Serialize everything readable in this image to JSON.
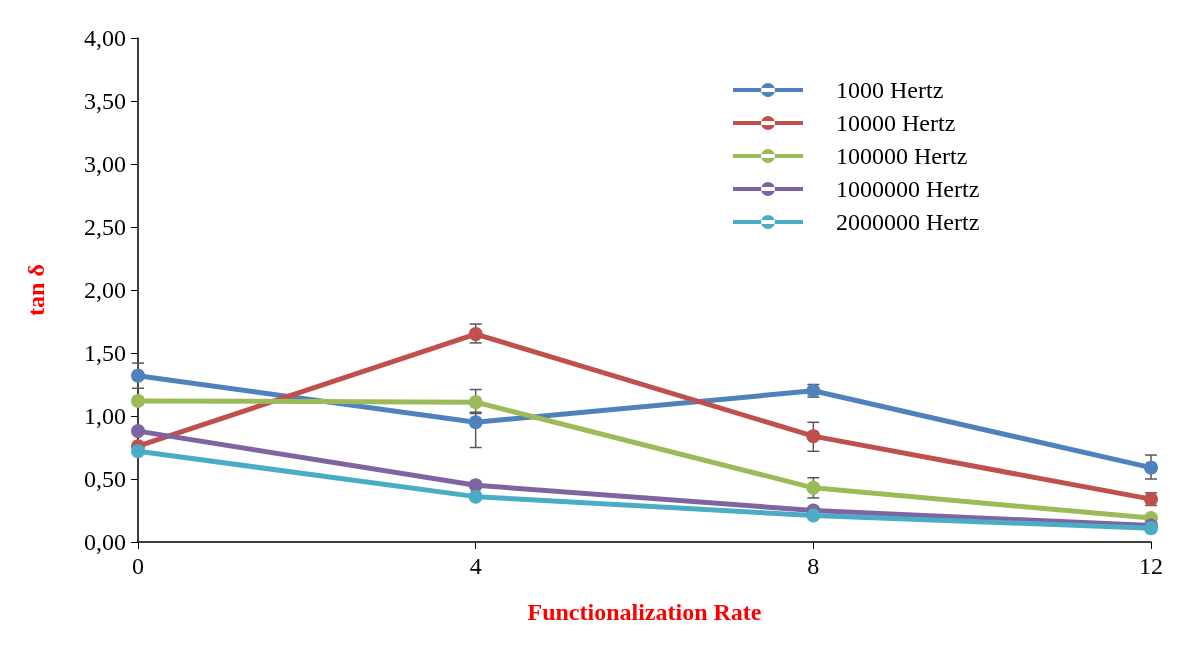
{
  "chart_data": {
    "type": "line",
    "xlabel": "Functionalization Rate",
    "ylabel": "tan δ",
    "x": [
      0,
      4,
      8,
      12
    ],
    "xlim": [
      0,
      12
    ],
    "xticks": [
      0,
      4,
      8,
      12
    ],
    "ylim": [
      0,
      4
    ],
    "yticks": [
      {
        "value": 0,
        "label": "0,00"
      },
      {
        "value": 0.5,
        "label": "0,50"
      },
      {
        "value": 1,
        "label": "1,00"
      },
      {
        "value": 1.5,
        "label": "1,50"
      },
      {
        "value": 2,
        "label": "2,00"
      },
      {
        "value": 2.5,
        "label": "2,50"
      },
      {
        "value": 3,
        "label": "3,00"
      },
      {
        "value": 3.5,
        "label": "3,50"
      },
      {
        "value": 4,
        "label": "4,00"
      }
    ],
    "grid": false,
    "legend": "top right",
    "marker": "circle",
    "line_style": "solid",
    "series": [
      {
        "name": "1000 Hertz",
        "color": "#4f81bd",
        "values": [
          1.32,
          0.95,
          1.2,
          0.59
        ],
        "errors": [
          0.1,
          [
            0.75,
            1.02
          ],
          0.05,
          [
            0.5,
            0.69
          ]
        ]
      },
      {
        "name": "10000 Hertz",
        "color": "#c0504d",
        "values": [
          0.76,
          1.65,
          0.84,
          0.34
        ],
        "errors": [
          null,
          [
            1.58,
            1.73
          ],
          [
            0.72,
            0.95
          ],
          0.05
        ]
      },
      {
        "name": "100000 Hertz",
        "color": "#9bbb59",
        "values": [
          1.12,
          1.11,
          0.43,
          0.19
        ],
        "errors": [
          null,
          [
            1.03,
            1.21
          ],
          [
            0.35,
            0.51
          ],
          null
        ]
      },
      {
        "name": "1000000 Hertz",
        "color": "#8064a2",
        "values": [
          0.88,
          0.45,
          0.25,
          0.13
        ],
        "errors": [
          null,
          null,
          null,
          null
        ]
      },
      {
        "name": "2000000 Hertz",
        "color": "#4bacc6",
        "values": [
          0.72,
          0.36,
          0.21,
          0.11
        ],
        "errors": [
          null,
          null,
          null,
          null
        ]
      }
    ]
  }
}
